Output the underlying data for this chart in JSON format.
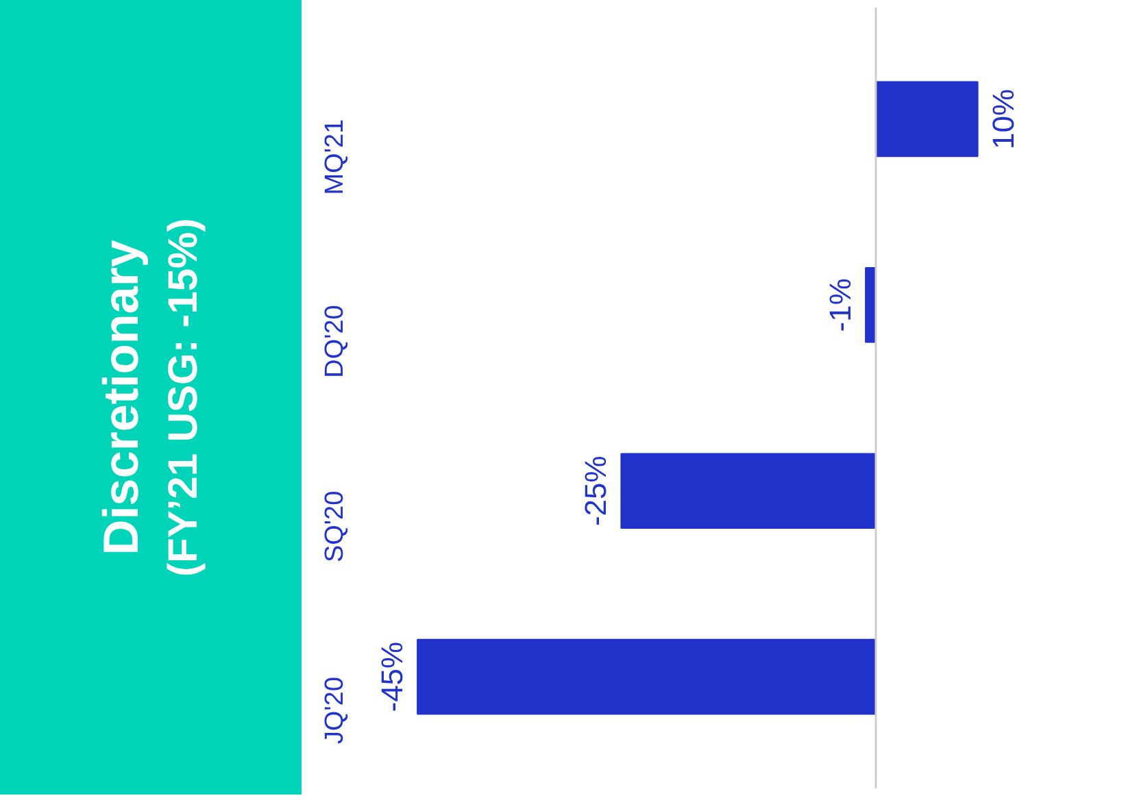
{
  "chart_data": {
    "type": "bar",
    "orientation": "horizontal",
    "title": "Discretionary",
    "subtitle": "(FY’21 USG: -15%)",
    "categories": [
      "MQ'21",
      "DQ'20",
      "SQ'20",
      "JQ'20"
    ],
    "values": [
      10,
      -1,
      -25,
      -45
    ],
    "value_labels": [
      "10%",
      "-1%",
      "-25%",
      "-45%"
    ],
    "color": "#2233cc",
    "grid": false,
    "tick_labels": "y"
  }
}
